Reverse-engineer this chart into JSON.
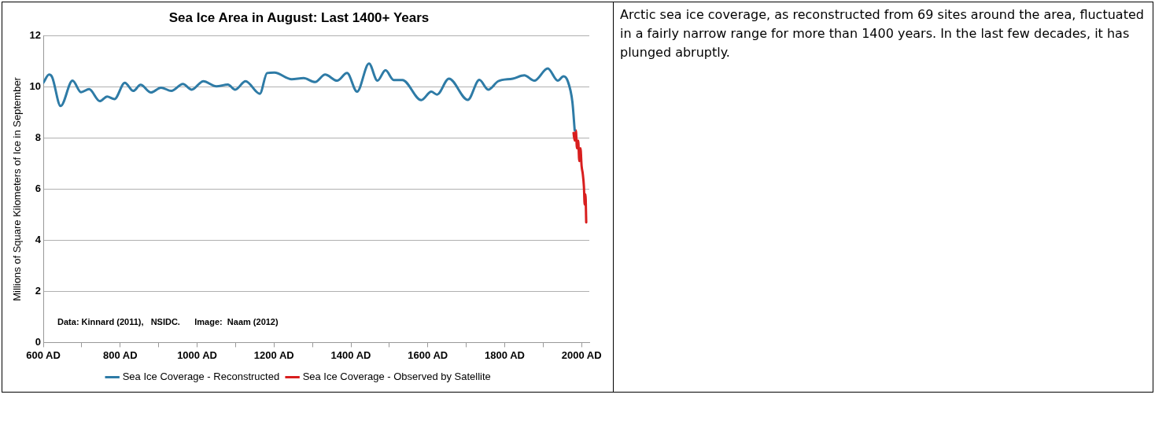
{
  "chart_data": {
    "type": "line",
    "title": "Sea Ice Area in August: Last 1400+ Years",
    "ylabel": "Millions of Square Kilometers of Ice in September",
    "annotations": [
      "Data: Kinnard (2011),   NSIDC.      Image:  Naam (2012)",
      "Arctic sea ice coverage, as reconstructed from 69 sites around the area, fluctuated in a fairly narrow range for more than 1400 years. In the last few decades, it has plunged abruptly."
    ],
    "series": [
      {
        "name": "Sea Ice Coverage - Reconstructed",
        "color": "#2e7ba6",
        "x": [
          600,
          615,
          623,
          645,
          676,
          698,
          719,
          747,
          766,
          785,
          812,
          834,
          853,
          880,
          906,
          933,
          963,
          986,
          1016,
          1050,
          1080,
          1099,
          1126,
          1163,
          1182,
          1201,
          1246,
          1277,
          1307,
          1333,
          1364,
          1390,
          1416,
          1447,
          1469,
          1490,
          1511,
          1534,
          1583,
          1609,
          1624,
          1655,
          1704,
          1734,
          1757,
          1783,
          1821,
          1851,
          1877,
          1912,
          1938,
          1953,
          1964,
          1976,
          1982
        ],
        "values": [
          10.16,
          10.48,
          10.38,
          9.25,
          10.24,
          9.79,
          9.91,
          9.44,
          9.62,
          9.52,
          10.16,
          9.84,
          10.08,
          9.78,
          9.97,
          9.84,
          10.11,
          9.89,
          10.22,
          10.02,
          10.09,
          9.89,
          10.22,
          9.73,
          10.54,
          10.56,
          10.3,
          10.34,
          10.19,
          10.48,
          10.24,
          10.54,
          9.81,
          10.91,
          10.24,
          10.65,
          10.27,
          10.27,
          9.48,
          9.81,
          9.7,
          10.32,
          9.49,
          10.27,
          9.89,
          10.22,
          10.32,
          10.45,
          10.24,
          10.72,
          10.24,
          10.41,
          10.22,
          9.41,
          8.3
        ]
      },
      {
        "name": "Sea Ice Coverage - Observed by Satellite",
        "color": "#d81e1e",
        "x": [
          1979,
          1982,
          1985,
          1988,
          1991,
          1994,
          1997,
          2000,
          2003,
          2006,
          2008,
          2010,
          2012
        ],
        "values": [
          8.2,
          7.9,
          8.3,
          7.6,
          7.9,
          7.1,
          7.6,
          6.9,
          6.6,
          6.1,
          5.4,
          5.8,
          4.7
        ]
      }
    ],
    "xlim": [
      600,
      2020
    ],
    "xticks": [
      {
        "value": 600,
        "label": "600 AD"
      },
      {
        "value": 700,
        "label": null
      },
      {
        "value": 800,
        "label": "800 AD"
      },
      {
        "value": 900,
        "label": null
      },
      {
        "value": 1000,
        "label": "1000 AD"
      },
      {
        "value": 1100,
        "label": null
      },
      {
        "value": 1200,
        "label": "1200 AD"
      },
      {
        "value": 1300,
        "label": null
      },
      {
        "value": 1400,
        "label": "1400 AD"
      },
      {
        "value": 1500,
        "label": null
      },
      {
        "value": 1600,
        "label": "1600 AD"
      },
      {
        "value": 1700,
        "label": null
      },
      {
        "value": 1800,
        "label": "1800 AD"
      },
      {
        "value": 1900,
        "label": null
      },
      {
        "value": 2000,
        "label": "2000 AD"
      }
    ],
    "ylim": [
      0,
      12
    ],
    "yticks": [
      0,
      2,
      4,
      6,
      8,
      10,
      12
    ],
    "grid": "y",
    "legend": "bottom",
    "line_style": "solid",
    "marker": "none"
  }
}
